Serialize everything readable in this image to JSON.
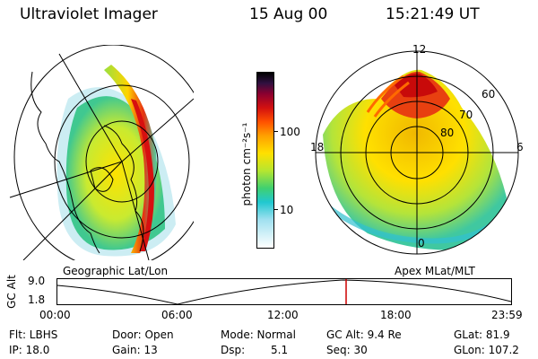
{
  "header": {
    "instrument": "Ultraviolet Imager",
    "date": "15 Aug 00",
    "time": "15:21:49 UT"
  },
  "colorbar": {
    "unit_label": "photon cm⁻²s⁻¹",
    "tick_labels": [
      "100",
      "10"
    ]
  },
  "panels": {
    "left_caption": "Geographic Lat/Lon",
    "right_caption": "Apex MLat/MLT"
  },
  "polar_labels": {
    "mlt_top": "12",
    "mlt_left": "18",
    "mlt_right": "6",
    "mlt_bottom": "0",
    "lat_60": "60",
    "lat_70": "70",
    "lat_80": "80"
  },
  "altitude_plot": {
    "ylabel": "GC Alt",
    "y_top": "9.0",
    "y_bottom": "1.8",
    "x_ticks": [
      "00:00",
      "06:00",
      "12:00",
      "18:00",
      "23:59"
    ],
    "marker_color": "#cc0000"
  },
  "info": {
    "flt": "Flt: LBHS",
    "ip": "IP: 18.0",
    "door": "Door: Open",
    "gain": "Gain: 13",
    "mode": "Mode: Normal",
    "dsp_label": "Dsp:",
    "dsp_value": "5.1",
    "gcalt": "GC Alt: 9.4 Re",
    "seq": "Seq: 30",
    "glat": "GLat: 81.9",
    "glon": "GLon: 107.2"
  }
}
